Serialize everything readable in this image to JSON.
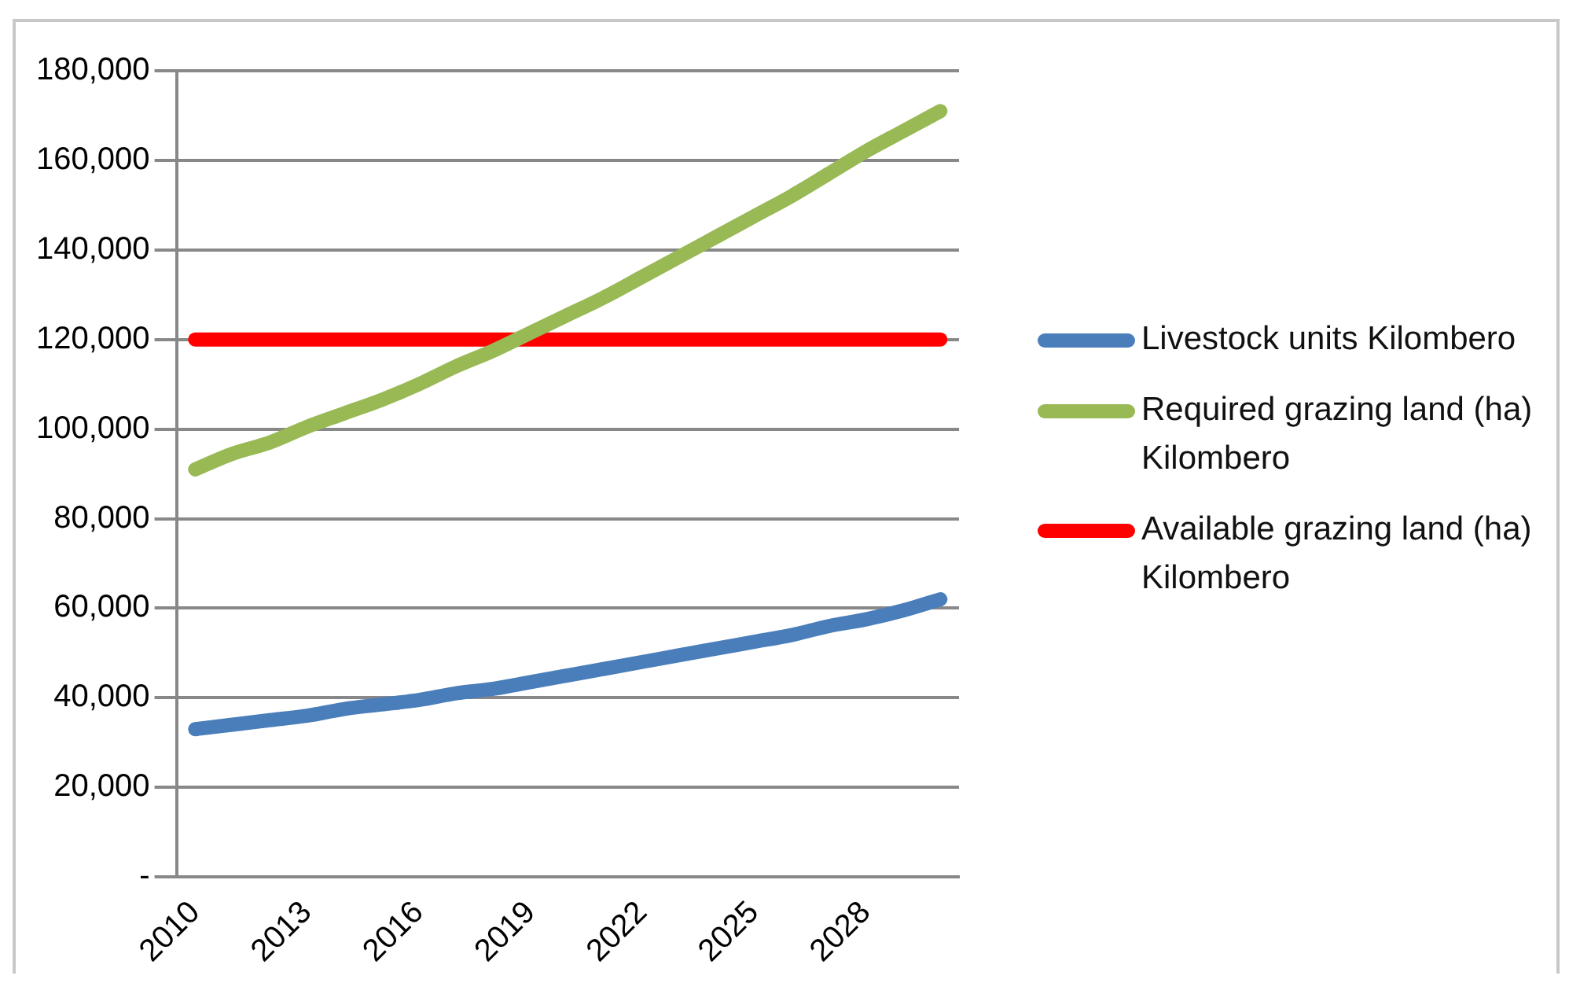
{
  "chart_data": {
    "type": "line",
    "categories": [
      "2010",
      null,
      null,
      "2013",
      null,
      null,
      "2016",
      null,
      null,
      "2019",
      null,
      null,
      "2022",
      null,
      null,
      "2025",
      null,
      null,
      "2028",
      null,
      null
    ],
    "series": [
      {
        "name": "Livestock units Kilombero",
        "color": "#4a7ebb",
        "values": [
          33000,
          34000,
          35000,
          36000,
          37500,
          38500,
          39500,
          41000,
          42000,
          43500,
          45000,
          46500,
          48000,
          49500,
          51000,
          52500,
          54000,
          56000,
          57500,
          59500,
          62000
        ]
      },
      {
        "name": "Required grazing land (ha) Kilombero",
        "color": "#98b954",
        "values": [
          91000,
          94500,
          97000,
          100500,
          103500,
          106500,
          110000,
          114000,
          117500,
          121500,
          125500,
          129500,
          134000,
          138500,
          143000,
          147500,
          152000,
          157000,
          162000,
          166500,
          171000
        ]
      },
      {
        "name": "Available grazing land (ha) Kilombero",
        "color": "#ff0000",
        "values": [
          120000,
          120000,
          120000,
          120000,
          120000,
          120000,
          120000,
          120000,
          120000,
          120000,
          120000,
          120000,
          120000,
          120000,
          120000,
          120000,
          120000,
          120000,
          120000,
          120000,
          120000
        ]
      }
    ],
    "ylim": [
      0,
      180000
    ],
    "yticks": [
      {
        "value": 0,
        "label": "-"
      },
      {
        "value": 20000,
        "label": "20,000"
      },
      {
        "value": 40000,
        "label": "40,000"
      },
      {
        "value": 60000,
        "label": "60,000"
      },
      {
        "value": 80000,
        "label": "80,000"
      },
      {
        "value": 100000,
        "label": "100,000"
      },
      {
        "value": 120000,
        "label": "120,000"
      },
      {
        "value": 140000,
        "label": "140,000"
      },
      {
        "value": 160000,
        "label": "160,000"
      },
      {
        "value": 180000,
        "label": "180,000"
      }
    ],
    "grid": "y",
    "legend": "right",
    "marker": "none",
    "line_style": "solid"
  }
}
